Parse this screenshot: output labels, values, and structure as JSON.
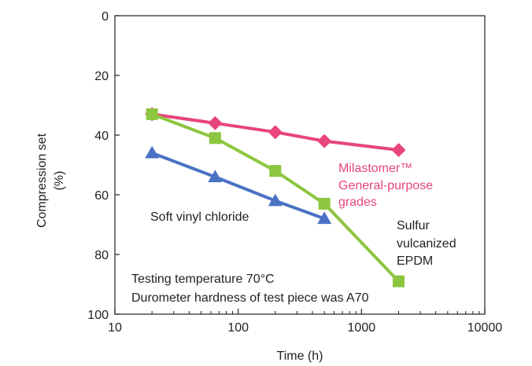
{
  "chart_data": {
    "type": "line",
    "xlabel": "Time (h)",
    "ylabel_lines": [
      "Compression set",
      "(%)"
    ],
    "x_scale": "log",
    "xlim": [
      10,
      10000
    ],
    "ylim": [
      0,
      100
    ],
    "y_inverted": true,
    "x_ticks": [
      10,
      100,
      1000,
      10000
    ],
    "x_tick_labels": [
      "10",
      "100",
      "1000",
      "10000"
    ],
    "y_ticks": [
      0,
      20,
      40,
      60,
      80,
      100
    ],
    "y_tick_labels": [
      "0",
      "20",
      "40",
      "60",
      "80",
      "100"
    ],
    "grid": false,
    "series": [
      {
        "label_lines": [
          "Milastomer™",
          "General-purpose",
          "grades"
        ],
        "color": "#e8447e",
        "marker": "diamond",
        "x": [
          20,
          65,
          200,
          500,
          2000
        ],
        "y": [
          33,
          36,
          39,
          42,
          45
        ]
      },
      {
        "label_lines": [
          "Soft vinyl chloride"
        ],
        "color": "#4a72c4",
        "marker": "triangle",
        "x": [
          20,
          65,
          200,
          500
        ],
        "y": [
          46,
          54,
          62,
          68
        ]
      },
      {
        "label_lines": [
          "Sulfur",
          "vulcanized",
          "EPDM"
        ],
        "color": "#8dc63f",
        "marker": "square",
        "x": [
          20,
          65,
          200,
          500,
          2000
        ],
        "y": [
          33,
          41,
          52,
          63,
          89
        ]
      }
    ],
    "annotations": [
      "Testing temperature 70°C",
      "Durometer hardness of test piece was A70"
    ]
  }
}
